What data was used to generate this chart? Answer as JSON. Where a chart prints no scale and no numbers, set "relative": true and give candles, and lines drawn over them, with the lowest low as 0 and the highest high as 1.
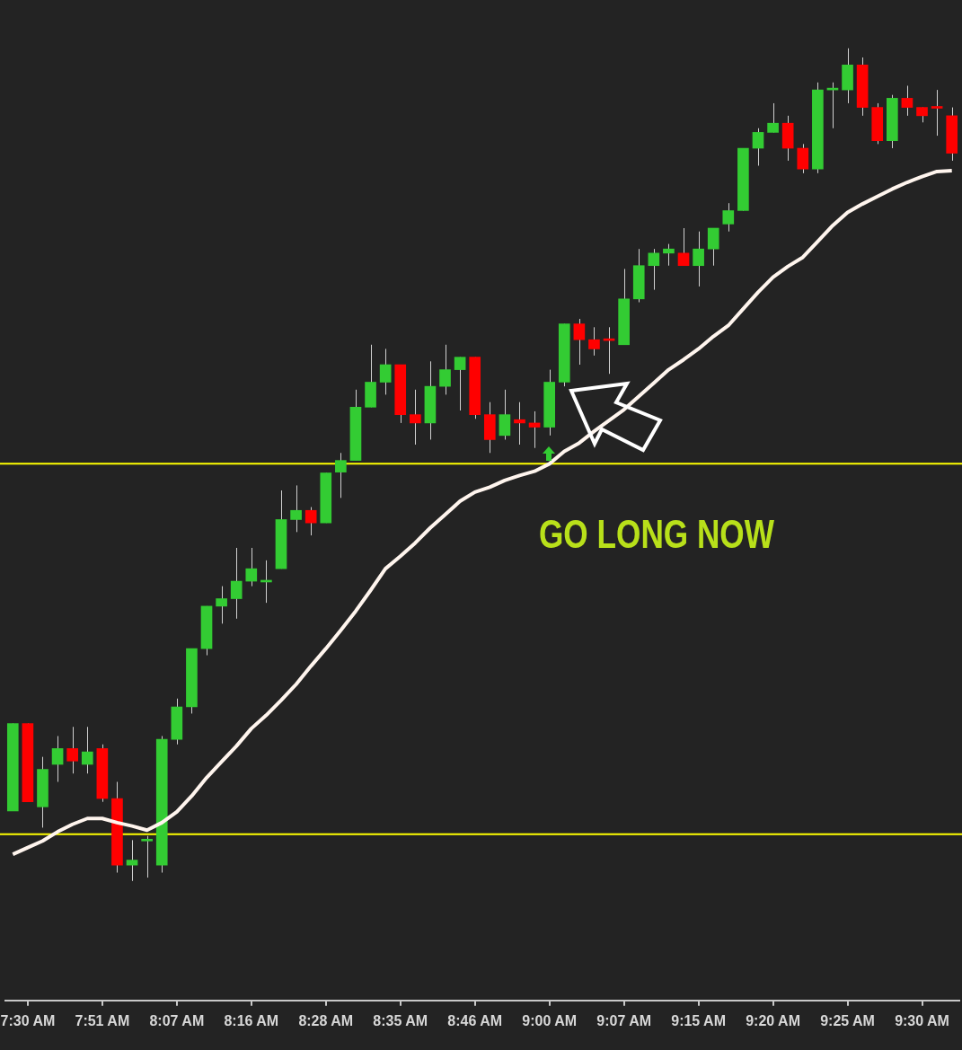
{
  "chart_data": {
    "type": "candlestick",
    "relative": true,
    "categories": [
      null,
      "7:30 AM",
      null,
      null,
      null,
      null,
      "7:51 AM",
      null,
      null,
      null,
      null,
      "8:07 AM",
      null,
      null,
      null,
      null,
      "8:16 AM",
      null,
      null,
      null,
      null,
      "8:28 AM",
      null,
      null,
      null,
      null,
      "8:35 AM",
      null,
      null,
      null,
      null,
      "8:46 AM",
      null,
      null,
      null,
      null,
      "9:00 AM",
      null,
      null,
      null,
      null,
      "9:07 AM",
      null,
      null,
      null,
      null,
      "9:15 AM",
      null,
      null,
      null,
      null,
      "9:20 AM",
      null,
      null,
      null,
      null,
      "9:25 AM",
      null,
      null,
      null,
      null,
      "9:30 AM",
      null,
      null
    ],
    "ohlc": [
      [
        0.084,
        0.189,
        0.084,
        0.189
      ],
      [
        0.189,
        0.189,
        0.095,
        0.095
      ],
      [
        0.089,
        0.149,
        0.064,
        0.134
      ],
      [
        0.14,
        0.174,
        0.119,
        0.159
      ],
      [
        0.159,
        0.185,
        0.129,
        0.144
      ],
      [
        0.14,
        0.185,
        0.129,
        0.155
      ],
      [
        0.159,
        0.164,
        0.095,
        0.099
      ],
      [
        0.099,
        0.119,
        0.01,
        0.019
      ],
      [
        0.019,
        0.049,
        0,
        0.025
      ],
      [
        0.048,
        0.054,
        0.004,
        0.05
      ],
      [
        0.019,
        0.174,
        0.01,
        0.17
      ],
      [
        0.17,
        0.219,
        0.164,
        0.209
      ],
      [
        0.209,
        0.279,
        0.201,
        0.279
      ],
      [
        0.279,
        0.33,
        0.271,
        0.33
      ],
      [
        0.33,
        0.354,
        0.309,
        0.339
      ],
      [
        0.339,
        0.4,
        0.315,
        0.36
      ],
      [
        0.36,
        0.4,
        0.354,
        0.375
      ],
      [
        0.359,
        0.385,
        0.334,
        0.36
      ],
      [
        0.375,
        0.469,
        0.375,
        0.434
      ],
      [
        0.434,
        0.475,
        0.419,
        0.445
      ],
      [
        0.445,
        0.449,
        0.415,
        0.43
      ],
      [
        0.43,
        0.49,
        0.43,
        0.49
      ],
      [
        0.491,
        0.514,
        0.46,
        0.505
      ],
      [
        0.505,
        0.59,
        0.505,
        0.569
      ],
      [
        0.569,
        0.644,
        0.569,
        0.599
      ],
      [
        0.599,
        0.639,
        0.584,
        0.62
      ],
      [
        0.62,
        0.62,
        0.55,
        0.56
      ],
      [
        0.56,
        0.59,
        0.524,
        0.55
      ],
      [
        0.55,
        0.624,
        0.53,
        0.594
      ],
      [
        0.594,
        0.644,
        0.584,
        0.614
      ],
      [
        0.614,
        0.629,
        0.565,
        0.629
      ],
      [
        0.629,
        0.629,
        0.555,
        0.56
      ],
      [
        0.56,
        0.575,
        0.514,
        0.53
      ],
      [
        0.535,
        0.59,
        0.53,
        0.56
      ],
      [
        0.554,
        0.575,
        0.524,
        0.55
      ],
      [
        0.55,
        0.564,
        0.52,
        0.545
      ],
      [
        0.545,
        0.614,
        0.535,
        0.599
      ],
      [
        0.599,
        0.669,
        0.594,
        0.669
      ],
      [
        0.669,
        0.675,
        0.62,
        0.65
      ],
      [
        0.65,
        0.665,
        0.631,
        0.639
      ],
      [
        0.649,
        0.665,
        0.609,
        0.65
      ],
      [
        0.644,
        0.735,
        0.644,
        0.699
      ],
      [
        0.699,
        0.759,
        0.695,
        0.739
      ],
      [
        0.739,
        0.759,
        0.71,
        0.754
      ],
      [
        0.754,
        0.765,
        0.739,
        0.759
      ],
      [
        0.754,
        0.784,
        0.739,
        0.739
      ],
      [
        0.739,
        0.78,
        0.714,
        0.759
      ],
      [
        0.759,
        0.784,
        0.739,
        0.784
      ],
      [
        0.789,
        0.814,
        0.78,
        0.805
      ],
      [
        0.805,
        0.88,
        0.805,
        0.88
      ],
      [
        0.88,
        0.904,
        0.859,
        0.899
      ],
      [
        0.899,
        0.934,
        0.899,
        0.91
      ],
      [
        0.91,
        0.919,
        0.865,
        0.88
      ],
      [
        0.88,
        0.885,
        0.85,
        0.855
      ],
      [
        0.855,
        0.959,
        0.85,
        0.95
      ],
      [
        0.95,
        0.959,
        0.904,
        0.951
      ],
      [
        0.95,
        1,
        0.934,
        0.98
      ],
      [
        0.98,
        0.989,
        0.919,
        0.929
      ],
      [
        0.929,
        0.934,
        0.885,
        0.889
      ],
      [
        0.889,
        0.944,
        0.88,
        0.94
      ],
      [
        0.94,
        0.955,
        0.919,
        0.929
      ],
      [
        0.929,
        0.929,
        0.911,
        0.919
      ],
      [
        0.928,
        0.95,
        0.895,
        0.929
      ],
      [
        0.919,
        0.929,
        0.865,
        0.874
      ]
    ],
    "colors": [
      "#33cc33",
      "#ff0000",
      "#33cc33",
      "#33cc33",
      "#ff0000",
      "#33cc33",
      "#ff0000",
      "#ff0000",
      "#33cc33",
      "#33cc33",
      "#33cc33",
      "#33cc33",
      "#33cc33",
      "#33cc33",
      "#33cc33",
      "#33cc33",
      "#33cc33",
      "#33cc33",
      "#33cc33",
      "#33cc33",
      "#ff0000",
      "#33cc33",
      "#33cc33",
      "#33cc33",
      "#33cc33",
      "#33cc33",
      "#ff0000",
      "#ff0000",
      "#33cc33",
      "#33cc33",
      "#33cc33",
      "#ff0000",
      "#ff0000",
      "#33cc33",
      "#ff0000",
      "#ff0000",
      "#33cc33",
      "#33cc33",
      "#ff0000",
      "#ff0000",
      "#ff0000",
      "#33cc33",
      "#33cc33",
      "#33cc33",
      "#33cc33",
      "#ff0000",
      "#33cc33",
      "#33cc33",
      "#33cc33",
      "#33cc33",
      "#33cc33",
      "#33cc33",
      "#ff0000",
      "#ff0000",
      "#33cc33",
      "#33cc33",
      "#33cc33",
      "#ff0000",
      "#ff0000",
      "#33cc33",
      "#ff0000",
      "#ff0000",
      "#ff0000",
      "#ff0000"
    ],
    "series": [
      {
        "type": "line",
        "color": "#fff5ee",
        "values": [
          0.032,
          0.04,
          0.048,
          0.059,
          0.068,
          0.075,
          0.075,
          0.07,
          0.066,
          0.061,
          0.07,
          0.083,
          0.102,
          0.124,
          0.143,
          0.162,
          0.183,
          0.199,
          0.217,
          0.236,
          0.258,
          0.279,
          0.301,
          0.324,
          0.349,
          0.375,
          0.39,
          0.406,
          0.424,
          0.44,
          0.456,
          0.467,
          0.473,
          0.481,
          0.487,
          0.492,
          0.501,
          0.516,
          0.526,
          0.54,
          0.553,
          0.566,
          0.582,
          0.598,
          0.614,
          0.626,
          0.639,
          0.654,
          0.667,
          0.687,
          0.707,
          0.725,
          0.738,
          0.749,
          0.768,
          0.787,
          0.803,
          0.813,
          0.822,
          0.831,
          0.839,
          0.846,
          0.852,
          0.853
        ]
      }
    ],
    "ref_lines": [
      {
        "axis": "y",
        "value": 0.501,
        "color": "#ffff00"
      },
      {
        "axis": "y",
        "value": 0.056,
        "color": "#ffff00"
      }
    ],
    "annotations": [
      "GO LONG NOW"
    ],
    "legend": false,
    "grid": false
  }
}
